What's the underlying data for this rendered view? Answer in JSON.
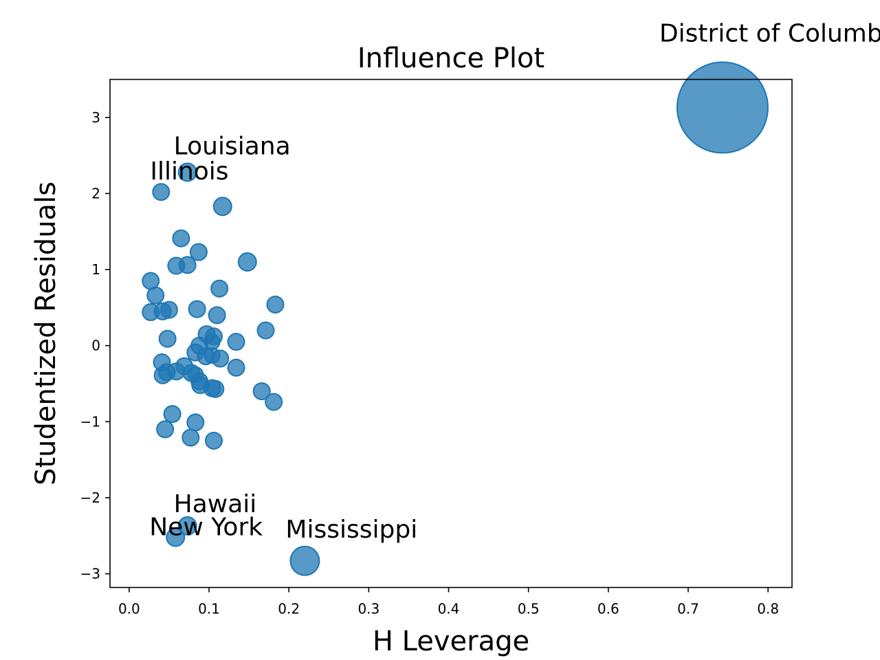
{
  "chart_data": {
    "type": "scatter",
    "title": "Influence Plot",
    "xlabel": "H Leverage",
    "ylabel": "Studentized Residuals",
    "xlim": [
      -0.024,
      0.83
    ],
    "ylim": [
      -3.18,
      3.5
    ],
    "xticks": [
      0.0,
      0.1,
      0.2,
      0.3,
      0.4,
      0.5,
      0.6,
      0.7,
      0.8
    ],
    "xtick_labels": [
      "0.0",
      "0.1",
      "0.2",
      "0.3",
      "0.4",
      "0.5",
      "0.6",
      "0.7",
      "0.8"
    ],
    "yticks": [
      -3,
      -2,
      -1,
      0,
      1,
      2,
      3
    ],
    "ytick_labels": [
      "−3",
      "−2",
      "−1",
      "0",
      "1",
      "2",
      "3"
    ],
    "grid": false,
    "color": "#1f77b4",
    "points": [
      {
        "x": 0.743,
        "y": 3.13,
        "size": 66
      },
      {
        "x": 0.073,
        "y": 2.28,
        "size": 13
      },
      {
        "x": 0.04,
        "y": 2.02,
        "size": 12
      },
      {
        "x": 0.117,
        "y": 1.83,
        "size": 13
      },
      {
        "x": 0.065,
        "y": 1.41,
        "size": 12
      },
      {
        "x": 0.087,
        "y": 1.23,
        "size": 12
      },
      {
        "x": 0.059,
        "y": 1.05,
        "size": 12
      },
      {
        "x": 0.073,
        "y": 1.06,
        "size": 12
      },
      {
        "x": 0.148,
        "y": 1.1,
        "size": 13
      },
      {
        "x": 0.027,
        "y": 0.85,
        "size": 12
      },
      {
        "x": 0.113,
        "y": 0.75,
        "size": 12
      },
      {
        "x": 0.033,
        "y": 0.66,
        "size": 12
      },
      {
        "x": 0.183,
        "y": 0.54,
        "size": 12
      },
      {
        "x": 0.085,
        "y": 0.48,
        "size": 12
      },
      {
        "x": 0.027,
        "y": 0.44,
        "size": 12
      },
      {
        "x": 0.042,
        "y": 0.45,
        "size": 12
      },
      {
        "x": 0.05,
        "y": 0.47,
        "size": 12
      },
      {
        "x": 0.11,
        "y": 0.4,
        "size": 12
      },
      {
        "x": 0.171,
        "y": 0.2,
        "size": 12
      },
      {
        "x": 0.097,
        "y": 0.15,
        "size": 12
      },
      {
        "x": 0.106,
        "y": 0.12,
        "size": 12
      },
      {
        "x": 0.048,
        "y": 0.09,
        "size": 12
      },
      {
        "x": 0.134,
        "y": 0.05,
        "size": 12
      },
      {
        "x": 0.088,
        "y": 0.0,
        "size": 12
      },
      {
        "x": 0.104,
        "y": 0.05,
        "size": 11
      },
      {
        "x": 0.083,
        "y": -0.09,
        "size": 12
      },
      {
        "x": 0.096,
        "y": -0.14,
        "size": 12
      },
      {
        "x": 0.104,
        "y": -0.13,
        "size": 11
      },
      {
        "x": 0.114,
        "y": -0.17,
        "size": 12
      },
      {
        "x": 0.041,
        "y": -0.22,
        "size": 12
      },
      {
        "x": 0.069,
        "y": -0.27,
        "size": 12
      },
      {
        "x": 0.134,
        "y": -0.29,
        "size": 12
      },
      {
        "x": 0.059,
        "y": -0.34,
        "size": 12
      },
      {
        "x": 0.047,
        "y": -0.35,
        "size": 12
      },
      {
        "x": 0.078,
        "y": -0.36,
        "size": 12
      },
      {
        "x": 0.042,
        "y": -0.39,
        "size": 12
      },
      {
        "x": 0.083,
        "y": -0.38,
        "size": 11
      },
      {
        "x": 0.088,
        "y": -0.47,
        "size": 12
      },
      {
        "x": 0.089,
        "y": -0.52,
        "size": 12
      },
      {
        "x": 0.104,
        "y": -0.56,
        "size": 12
      },
      {
        "x": 0.108,
        "y": -0.57,
        "size": 12
      },
      {
        "x": 0.166,
        "y": -0.6,
        "size": 12
      },
      {
        "x": 0.181,
        "y": -0.74,
        "size": 12
      },
      {
        "x": 0.054,
        "y": -0.9,
        "size": 12
      },
      {
        "x": 0.083,
        "y": -1.01,
        "size": 12
      },
      {
        "x": 0.045,
        "y": -1.1,
        "size": 12
      },
      {
        "x": 0.077,
        "y": -1.21,
        "size": 12
      },
      {
        "x": 0.106,
        "y": -1.25,
        "size": 12
      },
      {
        "x": 0.073,
        "y": -2.37,
        "size": 13
      },
      {
        "x": 0.058,
        "y": -2.52,
        "size": 13
      },
      {
        "x": 0.22,
        "y": -2.83,
        "size": 21
      }
    ],
    "annotations": [
      {
        "text": "District of Columbia",
        "x": 0.743,
        "y": 3.13
      },
      {
        "text": "Louisiana",
        "x": 0.073,
        "y": 2.28
      },
      {
        "text": "Illinois",
        "x": 0.04,
        "y": 2.02
      },
      {
        "text": "Hawaii",
        "x": 0.073,
        "y": -2.37
      },
      {
        "text": "New York",
        "x": 0.058,
        "y": -2.52
      },
      {
        "text": "Mississippi",
        "x": 0.22,
        "y": -2.83
      }
    ]
  }
}
